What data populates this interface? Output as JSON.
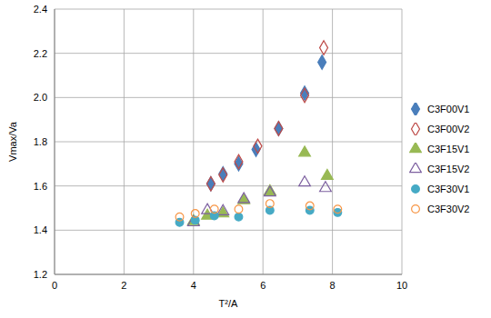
{
  "chart_data": {
    "type": "scatter",
    "x_label": "T²/A",
    "y_label": "Vmax/Va",
    "xlim": [
      0,
      10
    ],
    "xticks": [
      0,
      2,
      4,
      6,
      8,
      10
    ],
    "ylim": [
      1.2,
      2.4
    ],
    "yticks": [
      1.2,
      1.4,
      1.6,
      1.8,
      {
        "value": 2,
        "label": "2.0"
      },
      2.2,
      2.4
    ],
    "grid": true,
    "legend": "right",
    "series": [
      {
        "name": "C3F00V1",
        "color": "#4a7ebb",
        "marker": "diamond",
        "x": [
          4.5,
          4.85,
          5.3,
          5.8,
          6.45,
          7.2,
          7.7
        ],
        "values": [
          1.61,
          1.655,
          1.7,
          1.765,
          1.86,
          2.02,
          2.16
        ]
      },
      {
        "name": "C3F00V2",
        "color": "#be4b48",
        "marker": "diamond-open",
        "x": [
          4.5,
          4.85,
          5.3,
          5.85,
          6.45,
          7.2,
          7.75
        ],
        "values": [
          1.61,
          1.65,
          1.71,
          1.78,
          1.86,
          2.01,
          2.225
        ]
      },
      {
        "name": "C3F15V1",
        "color": "#98b954",
        "marker": "triangle",
        "x": [
          4.0,
          4.4,
          4.85,
          5.45,
          6.2,
          7.2,
          7.85
        ],
        "values": [
          1.44,
          1.465,
          1.475,
          1.535,
          1.575,
          1.75,
          1.645
        ]
      },
      {
        "name": "C3F15V2",
        "color": "#7d60a0",
        "marker": "triangle-open",
        "x": [
          4.0,
          4.4,
          4.85,
          5.45,
          6.2,
          7.2,
          7.8
        ],
        "values": [
          1.435,
          1.49,
          1.485,
          1.54,
          1.57,
          1.615,
          1.59
        ]
      },
      {
        "name": "C3F30V1",
        "color": "#46aac5",
        "marker": "circle",
        "x": [
          3.6,
          4.05,
          4.6,
          5.3,
          6.2,
          7.35,
          8.15
        ],
        "values": [
          1.435,
          1.445,
          1.465,
          1.46,
          1.49,
          1.49,
          1.48
        ]
      },
      {
        "name": "C3F30V2",
        "color": "#f79646",
        "marker": "circle-open",
        "x": [
          3.6,
          4.05,
          4.6,
          5.3,
          6.2,
          7.35,
          8.15
        ],
        "values": [
          1.46,
          1.475,
          1.495,
          1.495,
          1.52,
          1.51,
          1.495
        ]
      }
    ]
  }
}
